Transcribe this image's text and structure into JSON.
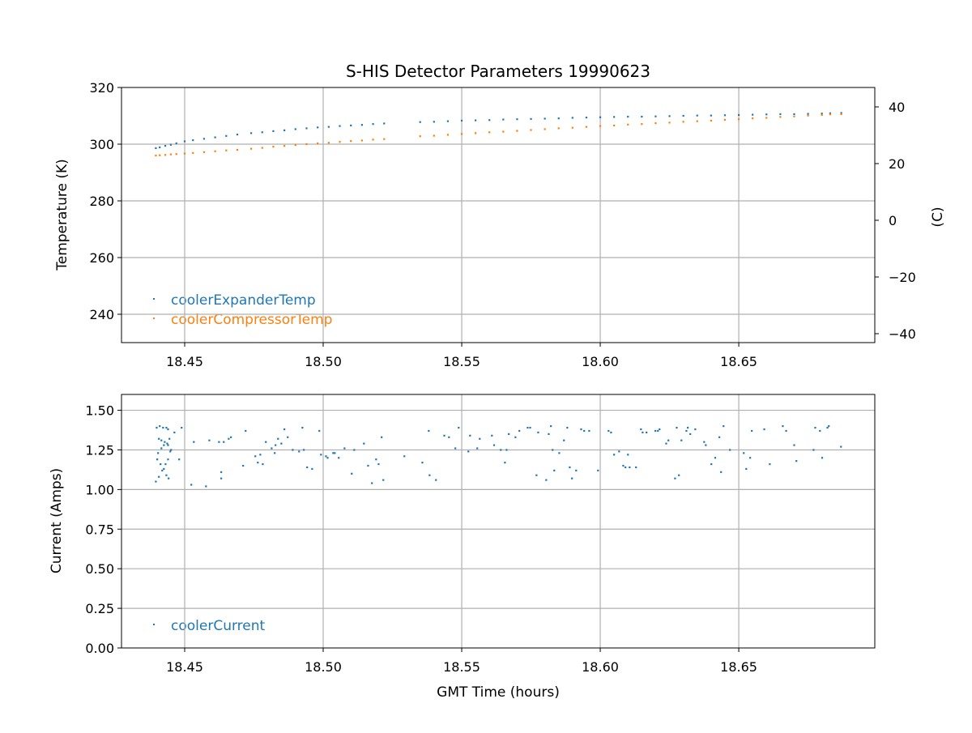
{
  "chart_data": [
    {
      "type": "scatter",
      "title": "S-HIS Detector Parameters 19990623",
      "xlabel": "",
      "ylabel": "Temperature (K)",
      "ylabel_right": "(C)",
      "xlim": [
        18.4272,
        18.6991
      ],
      "ylim": [
        230,
        320
      ],
      "grid": true,
      "legend_placement": "lower-left",
      "x_ticks": [
        18.45,
        18.5,
        18.55,
        18.6,
        18.65
      ],
      "x_tick_labels": [
        "18.45",
        "18.50",
        "18.55",
        "18.60",
        "18.65"
      ],
      "y_ticks": [
        240,
        260,
        280,
        300,
        320
      ],
      "y_tick_labels": [
        "240",
        "260",
        "280",
        "300",
        "320"
      ],
      "y_right_offset_K_to_C": -273.15,
      "y_right_ticks": [
        -40,
        -20,
        0,
        20,
        40
      ],
      "y_right_tick_labels": [
        "−40",
        "−20",
        "0",
        "20",
        "40"
      ],
      "x": [
        18.4396,
        18.441,
        18.443,
        18.445,
        18.447,
        18.45,
        18.453,
        18.457,
        18.461,
        18.465,
        18.469,
        18.474,
        18.478,
        18.482,
        18.486,
        18.49,
        18.494,
        18.498,
        18.502,
        18.506,
        18.51,
        18.514,
        18.518,
        18.522,
        18.535,
        18.54,
        18.545,
        18.55,
        18.555,
        18.56,
        18.565,
        18.57,
        18.575,
        18.58,
        18.585,
        18.59,
        18.595,
        18.6,
        18.605,
        18.61,
        18.615,
        18.62,
        18.625,
        18.63,
        18.635,
        18.64,
        18.645,
        18.65,
        18.655,
        18.66,
        18.665,
        18.67,
        18.675,
        18.68,
        18.683,
        18.687
      ],
      "series": [
        {
          "name": "coolerExpanderTemp",
          "color": "#1f77b4",
          "values": [
            298.6,
            298.9,
            299.4,
            299.8,
            300.3,
            301.0,
            301.4,
            301.9,
            302.4,
            302.9,
            303.4,
            303.9,
            304.2,
            304.6,
            304.9,
            305.3,
            305.6,
            305.9,
            306.1,
            306.4,
            306.6,
            306.8,
            307.1,
            307.3,
            307.8,
            307.9,
            308.1,
            308.3,
            308.4,
            308.5,
            308.7,
            308.8,
            308.9,
            309.0,
            309.1,
            309.3,
            309.4,
            309.5,
            309.6,
            309.7,
            309.7,
            309.8,
            309.9,
            310.0,
            310.1,
            310.1,
            310.2,
            310.3,
            310.4,
            310.5,
            310.6,
            310.6,
            310.7,
            310.8,
            310.9,
            311.0
          ]
        },
        {
          "name": "coolerCompressorTemp",
          "color": "#ff7f0e",
          "values": [
            296.0,
            296.1,
            296.2,
            296.4,
            296.5,
            296.7,
            296.9,
            297.2,
            297.5,
            297.8,
            298.0,
            298.4,
            298.7,
            299.1,
            299.4,
            299.7,
            300.0,
            300.3,
            300.5,
            300.8,
            301.1,
            301.3,
            301.6,
            301.8,
            302.8,
            303.0,
            303.3,
            303.6,
            303.9,
            304.2,
            304.4,
            304.7,
            305.0,
            305.3,
            305.6,
            305.8,
            306.1,
            306.4,
            306.6,
            306.9,
            307.1,
            307.4,
            307.6,
            307.9,
            308.1,
            308.3,
            308.6,
            308.8,
            309.1,
            309.3,
            309.6,
            309.8,
            310.1,
            310.3,
            310.5,
            310.6
          ]
        }
      ]
    },
    {
      "type": "scatter",
      "title": "",
      "xlabel": "GMT Time (hours)",
      "ylabel": "Current (Amps)",
      "xlim": [
        18.4272,
        18.6991
      ],
      "ylim": [
        0,
        1.6
      ],
      "grid": true,
      "legend_placement": "lower-left",
      "x_ticks": [
        18.45,
        18.5,
        18.55,
        18.6,
        18.65
      ],
      "x_tick_labels": [
        "18.45",
        "18.50",
        "18.55",
        "18.60",
        "18.65"
      ],
      "y_ticks": [
        0,
        0.25,
        0.5,
        0.75,
        1.0,
        1.25,
        1.5
      ],
      "y_tick_labels": [
        "0.00",
        "0.25",
        "0.50",
        "0.75",
        "1.00",
        "1.25",
        "1.50"
      ],
      "x": [
        18.4396,
        18.4399,
        18.4401,
        18.4404,
        18.4407,
        18.4407,
        18.441,
        18.4413,
        18.4416,
        18.4416,
        18.4419,
        18.4422,
        18.4425,
        18.4425,
        18.4428,
        18.4431,
        18.4434,
        18.4434,
        18.4437,
        18.444,
        18.444,
        18.444,
        18.4442,
        18.4445,
        18.4448,
        18.4451,
        18.4463,
        18.448,
        18.4489,
        18.4524,
        18.4533,
        18.4577,
        18.4589,
        18.4624,
        18.4632,
        18.4632,
        18.4641,
        18.4659,
        18.4667,
        18.4711,
        18.472,
        18.4755,
        18.4764,
        18.4773,
        18.4782,
        18.4793,
        18.4814,
        18.4825,
        18.4828,
        18.4837,
        18.4849,
        18.486,
        18.4872,
        18.489,
        18.4913,
        18.4925,
        18.493,
        18.4942,
        18.496,
        18.4986,
        18.4992,
        18.501,
        18.5016,
        18.5036,
        18.5042,
        18.5056,
        18.5077,
        18.5103,
        18.5112,
        18.5147,
        18.5162,
        18.5176,
        18.5191,
        18.52,
        18.5211,
        18.5217,
        18.5293,
        18.5358,
        18.5381,
        18.5384,
        18.5407,
        18.5437,
        18.5454,
        18.5477,
        18.5489,
        18.5524,
        18.553,
        18.5556,
        18.5565,
        18.5609,
        18.5617,
        18.5641,
        18.5656,
        18.5662,
        18.567,
        18.5694,
        18.5708,
        18.5738,
        18.5747,
        18.577,
        18.5776,
        18.5805,
        18.5814,
        18.5822,
        18.5828,
        18.5834,
        18.5852,
        18.5869,
        18.5881,
        18.589,
        18.5898,
        18.5913,
        18.5931,
        18.5942,
        18.596,
        18.5992,
        18.603,
        18.6039,
        18.605,
        18.6068,
        18.6083,
        18.6091,
        18.61,
        18.6106,
        18.6129,
        18.6147,
        18.6153,
        18.6167,
        18.6199,
        18.6208,
        18.6214,
        18.6238,
        18.6246,
        18.627,
        18.6276,
        18.6284,
        18.6293,
        18.6311,
        18.6316,
        18.6325,
        18.6343,
        18.6375,
        18.6381,
        18.6401,
        18.6415,
        18.643,
        18.6436,
        18.6445,
        18.6468,
        18.6518,
        18.6527,
        18.6541,
        18.6547,
        18.6592,
        18.6612,
        18.6659,
        18.6671,
        18.67,
        18.6708,
        18.677,
        18.6776,
        18.6793,
        18.6801,
        18.682,
        18.6825,
        18.6869
      ],
      "series": [
        {
          "name": "coolerCurrent",
          "color": "#1f77b4",
          "values": [
            1.05,
            1.39,
            1.19,
            1.23,
            1.08,
            1.32,
            1.4,
            1.16,
            1.31,
            1.26,
            1.12,
            1.39,
            1.13,
            1.28,
            1.3,
            1.16,
            1.39,
            1.09,
            1.29,
            1.38,
            1.19,
            1.28,
            1.07,
            1.32,
            1.24,
            1.25,
            1.36,
            1.19,
            1.39,
            1.03,
            1.3,
            1.02,
            1.31,
            1.3,
            1.11,
            1.07,
            1.3,
            1.32,
            1.33,
            1.15,
            1.37,
            1.21,
            1.17,
            1.22,
            1.16,
            1.3,
            1.26,
            1.23,
            1.28,
            1.32,
            1.29,
            1.38,
            1.33,
            1.25,
            1.24,
            1.39,
            1.25,
            1.14,
            1.13,
            1.37,
            1.22,
            1.21,
            1.2,
            1.23,
            1.23,
            1.2,
            1.26,
            1.1,
            1.25,
            1.29,
            1.15,
            1.04,
            1.19,
            1.16,
            1.33,
            1.06,
            1.21,
            1.17,
            1.37,
            1.09,
            1.06,
            1.34,
            1.33,
            1.26,
            1.39,
            1.24,
            1.34,
            1.26,
            1.32,
            1.34,
            1.28,
            1.25,
            1.17,
            1.25,
            1.35,
            1.33,
            1.37,
            1.39,
            1.39,
            1.09,
            1.36,
            1.06,
            1.35,
            1.4,
            1.25,
            1.12,
            1.23,
            1.31,
            1.39,
            1.14,
            1.07,
            1.12,
            1.38,
            1.37,
            1.37,
            1.12,
            1.37,
            1.36,
            1.22,
            1.24,
            1.15,
            1.14,
            1.22,
            1.14,
            1.14,
            1.38,
            1.36,
            1.36,
            1.37,
            1.37,
            1.38,
            1.29,
            1.31,
            1.07,
            1.39,
            1.09,
            1.31,
            1.37,
            1.39,
            1.35,
            1.38,
            1.3,
            1.28,
            1.16,
            1.2,
            1.33,
            1.11,
            1.4,
            1.25,
            1.23,
            1.13,
            1.2,
            1.37,
            1.38,
            1.16,
            1.4,
            1.37,
            1.28,
            1.18,
            1.25,
            1.39,
            1.37,
            1.2,
            1.39,
            1.4,
            1.27
          ]
        }
      ]
    }
  ]
}
